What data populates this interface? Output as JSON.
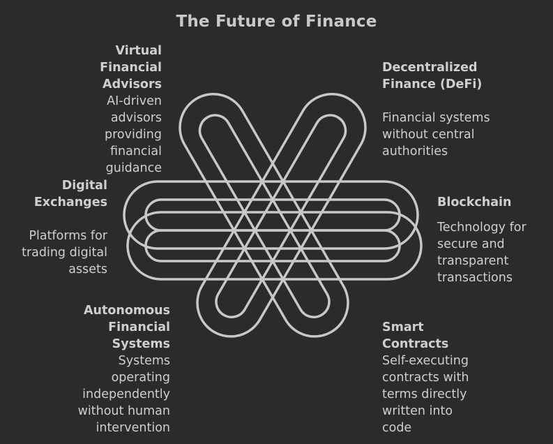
{
  "title": "The Future of Finance",
  "nodes": [
    {
      "id": "virtual",
      "title_lines": [
        "Virtual",
        "Financial",
        "Advisors"
      ],
      "desc_lines": [
        "AI-driven",
        "advisors",
        "providing",
        "financial",
        "guidance"
      ]
    },
    {
      "id": "defi",
      "title_lines": [
        "Decentralized",
        "Finance (DeFi)"
      ],
      "desc_lines": [
        "Financial systems",
        "without central",
        "authorities"
      ]
    },
    {
      "id": "digital",
      "title_lines": [
        "Digital",
        "Exchanges"
      ],
      "desc_lines": [
        "Platforms for",
        "trading digital",
        "assets"
      ]
    },
    {
      "id": "blockchain",
      "title_lines": [
        "Blockchain"
      ],
      "desc_lines": [
        "Technology for",
        "secure and",
        "transparent",
        "transactions"
      ]
    },
    {
      "id": "autonomous",
      "title_lines": [
        "Autonomous",
        "Financial",
        "Systems"
      ],
      "desc_lines": [
        "Systems",
        "operating",
        "independently",
        "without human",
        "intervention"
      ]
    },
    {
      "id": "smart",
      "title_lines": [
        "Smart",
        "Contracts"
      ],
      "desc_lines": [
        "Self-executing",
        "contracts with",
        "terms directly",
        "written into",
        "code"
      ]
    }
  ],
  "colors": {
    "background": "#2b2b2b",
    "stroke": "#c8c8c8",
    "text": "#cfcfcf"
  }
}
